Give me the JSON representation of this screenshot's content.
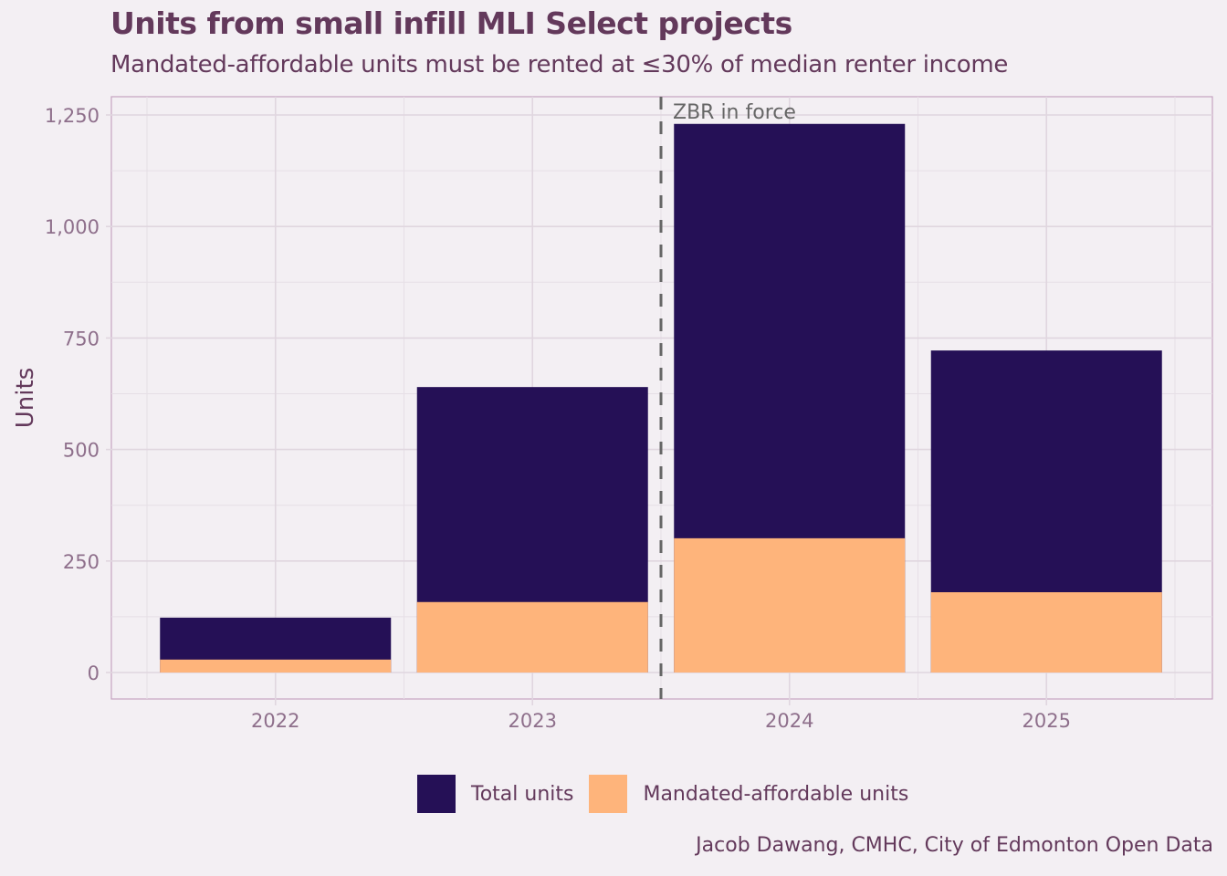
{
  "chart_data": {
    "type": "bar",
    "mode": "overlay",
    "title": "Units from small infill MLI Select projects",
    "subtitle": "Mandated-affordable units must be rented at ≤30% of median renter income",
    "xlabel": "",
    "ylabel": "Units",
    "categories": [
      "2022",
      "2023",
      "2024",
      "2025"
    ],
    "series": [
      {
        "name": "Total units",
        "color": "#251056",
        "values": [
          123,
          640,
          1230,
          722
        ]
      },
      {
        "name": "Mandated-affordable units",
        "color": "#feb47b",
        "values": [
          29,
          158,
          301,
          180
        ]
      }
    ],
    "ylim": [
      -60,
      1290
    ],
    "yticks": [
      0,
      250,
      500,
      750,
      1000,
      1250
    ],
    "ytick_labels": [
      "0",
      "250",
      "500",
      "750",
      "1,000",
      "1,250"
    ],
    "grid": true,
    "annotation": {
      "text": "ZBR in force",
      "x_between": [
        "2023",
        "2024"
      ],
      "style": "dashed vertical line",
      "color": "#666666"
    },
    "legend_position": "bottom",
    "caption": "Jacob Dawang, CMHC, City of Edmonton Open Data"
  }
}
